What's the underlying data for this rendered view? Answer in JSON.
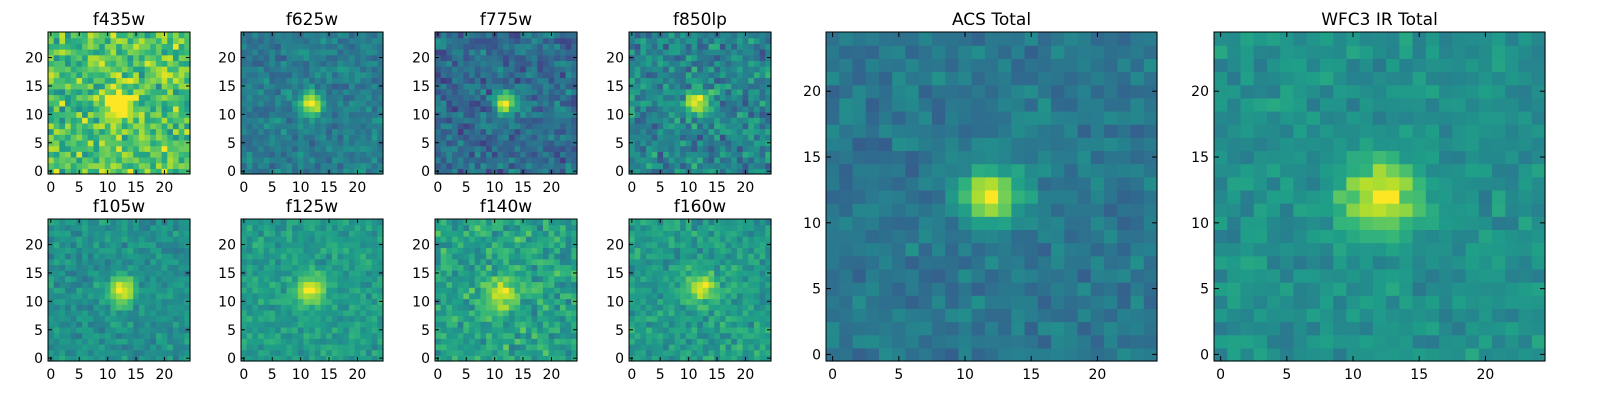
{
  "chart_data": [
    {
      "type": "heatmap",
      "title": "f435w",
      "xticks": [
        0,
        5,
        10,
        15,
        20
      ],
      "yticks": [
        0,
        5,
        10,
        15,
        20
      ],
      "xlim": [
        -0.5,
        24.5
      ],
      "ylim": [
        -0.5,
        24.5
      ],
      "grid_size": 25,
      "source": {
        "x": 12,
        "y": 12,
        "sigma": 1.6,
        "peak": 0.55
      },
      "background": 0.72,
      "noise": 0.28,
      "colormap": "viridis"
    },
    {
      "type": "heatmap",
      "title": "f625w",
      "xticks": [
        0,
        5,
        10,
        15,
        20
      ],
      "yticks": [
        0,
        5,
        10,
        15,
        20
      ],
      "xlim": [
        -0.5,
        24.5
      ],
      "ylim": [
        -0.5,
        24.5
      ],
      "grid_size": 25,
      "source": {
        "x": 12,
        "y": 12,
        "sigma": 1.4,
        "peak": 0.6
      },
      "background": 0.42,
      "noise": 0.15,
      "colormap": "viridis"
    },
    {
      "type": "heatmap",
      "title": "f775w",
      "xticks": [
        0,
        5,
        10,
        15,
        20
      ],
      "yticks": [
        0,
        5,
        10,
        15,
        20
      ],
      "xlim": [
        -0.5,
        24.5
      ],
      "ylim": [
        -0.5,
        24.5
      ],
      "grid_size": 25,
      "source": {
        "x": 12,
        "y": 12,
        "sigma": 1.4,
        "peak": 0.65
      },
      "background": 0.35,
      "noise": 0.2,
      "colormap": "viridis"
    },
    {
      "type": "heatmap",
      "title": "f850lp",
      "xticks": [
        0,
        5,
        10,
        15,
        20
      ],
      "yticks": [
        0,
        5,
        10,
        15,
        20
      ],
      "xlim": [
        -0.5,
        24.5
      ],
      "ylim": [
        -0.5,
        24.5
      ],
      "grid_size": 25,
      "source": {
        "x": 11.5,
        "y": 12,
        "sigma": 1.5,
        "peak": 0.55
      },
      "background": 0.45,
      "noise": 0.24,
      "colormap": "viridis"
    },
    {
      "type": "heatmap",
      "title": "f105w",
      "xticks": [
        0,
        5,
        10,
        15,
        20
      ],
      "yticks": [
        0,
        5,
        10,
        15,
        20
      ],
      "xlim": [
        -0.5,
        24.5
      ],
      "ylim": [
        -0.5,
        24.5
      ],
      "grid_size": 25,
      "source": {
        "x": 12.5,
        "y": 12,
        "sigma": 1.7,
        "peak": 0.5
      },
      "background": 0.5,
      "noise": 0.14,
      "colormap": "viridis"
    },
    {
      "type": "heatmap",
      "title": "f125w",
      "xticks": [
        0,
        5,
        10,
        15,
        20
      ],
      "yticks": [
        0,
        5,
        10,
        15,
        20
      ],
      "xlim": [
        -0.5,
        24.5
      ],
      "ylim": [
        -0.5,
        24.5
      ],
      "grid_size": 25,
      "source": {
        "x": 12,
        "y": 12,
        "sigma": 1.8,
        "peak": 0.45
      },
      "background": 0.55,
      "noise": 0.13,
      "colormap": "viridis"
    },
    {
      "type": "heatmap",
      "title": "f140w",
      "xticks": [
        0,
        5,
        10,
        15,
        20
      ],
      "yticks": [
        0,
        5,
        10,
        15,
        20
      ],
      "xlim": [
        -0.5,
        24.5
      ],
      "ylim": [
        -0.5,
        24.5
      ],
      "grid_size": 25,
      "source": {
        "x": 11.5,
        "y": 11.5,
        "sigma": 2.0,
        "peak": 0.4
      },
      "background": 0.58,
      "noise": 0.2,
      "colormap": "viridis"
    },
    {
      "type": "heatmap",
      "title": "f160w",
      "xticks": [
        0,
        5,
        10,
        15,
        20
      ],
      "yticks": [
        0,
        5,
        10,
        15,
        20
      ],
      "xlim": [
        -0.5,
        24.5
      ],
      "ylim": [
        -0.5,
        24.5
      ],
      "grid_size": 25,
      "source": {
        "x": 12,
        "y": 12.5,
        "sigma": 1.7,
        "peak": 0.45
      },
      "background": 0.55,
      "noise": 0.16,
      "colormap": "viridis"
    },
    {
      "type": "heatmap",
      "title": "ACS Total",
      "xticks": [
        0,
        5,
        10,
        15,
        20
      ],
      "yticks": [
        0,
        5,
        10,
        15,
        20
      ],
      "xlim": [
        -0.5,
        24.5
      ],
      "ylim": [
        -0.5,
        24.5
      ],
      "grid_size": 25,
      "source": {
        "x": 12,
        "y": 12,
        "sigma": 1.5,
        "peak": 0.62
      },
      "background": 0.4,
      "noise": 0.12,
      "colormap": "viridis"
    },
    {
      "type": "heatmap",
      "title": "WFC3 IR Total",
      "xticks": [
        0,
        5,
        10,
        15,
        20
      ],
      "yticks": [
        0,
        5,
        10,
        15,
        20
      ],
      "xlim": [
        -0.5,
        24.5
      ],
      "ylim": [
        -0.5,
        24.5
      ],
      "grid_size": 25,
      "source": {
        "x": 12,
        "y": 12,
        "sigma": 1.9,
        "peak": 0.5
      },
      "background": 0.5,
      "noise": 0.11,
      "colormap": "viridis"
    }
  ]
}
